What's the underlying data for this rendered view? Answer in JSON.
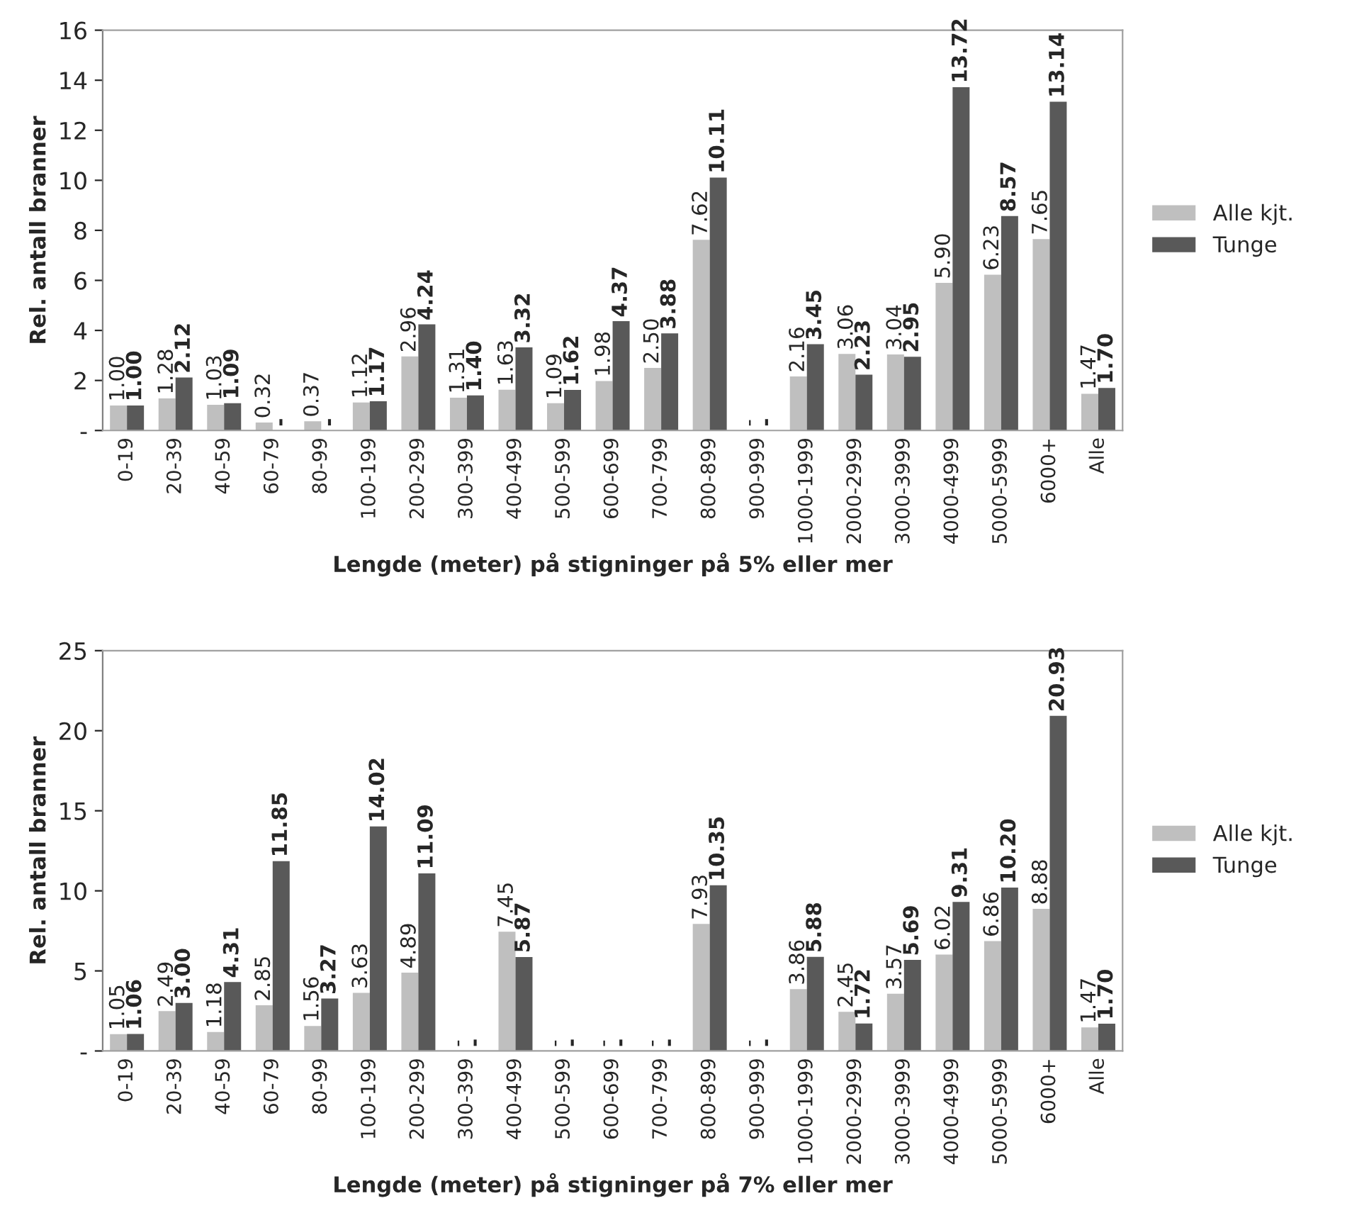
{
  "chart_data": [
    {
      "type": "bar",
      "xlabel": "Lengde (meter) på stigninger på 5% eller mer",
      "ylabel": "Rel. antall branner",
      "categories": [
        "0-19",
        "20-39",
        "40-59",
        "60-79",
        "80-99",
        "100-199",
        "200-299",
        "300-399",
        "400-499",
        "500-599",
        "600-699",
        "700-799",
        "800-899",
        "900-999",
        "1000-1999",
        "2000-2999",
        "3000-3999",
        "4000-4999",
        "5000-5999",
        "6000+",
        "Alle"
      ],
      "series": [
        {
          "name": "Alle kjt.",
          "color": "#bfbfbf",
          "values": [
            1.0,
            1.28,
            1.03,
            0.32,
            0.37,
            1.12,
            2.96,
            1.31,
            1.63,
            1.09,
            1.98,
            2.5,
            7.62,
            0,
            2.16,
            3.06,
            3.04,
            5.9,
            6.23,
            7.65,
            1.47
          ],
          "value_labels": [
            "1.00",
            "1.28",
            "1.03",
            "0.32",
            "0.37",
            "1.12",
            "2.96",
            "1.31",
            "1.63",
            "1.09",
            "1.98",
            "2.50",
            "7.62",
            "-",
            "2.16",
            "3.06",
            "3.04",
            "5.90",
            "6.23",
            "7.65",
            "1.47"
          ]
        },
        {
          "name": "Tunge",
          "color": "#595959",
          "values": [
            1.0,
            2.12,
            1.09,
            0,
            0,
            1.17,
            4.24,
            1.4,
            3.32,
            1.62,
            4.37,
            3.88,
            10.11,
            0,
            3.45,
            2.23,
            2.95,
            13.72,
            8.57,
            13.14,
            1.7
          ],
          "value_labels": [
            "1.00",
            "2.12",
            "1.09",
            "-",
            "-",
            "1.17",
            "4.24",
            "1.40",
            "3.32",
            "1.62",
            "4.37",
            "3.88",
            "10.11",
            "-",
            "3.45",
            "2.23",
            "2.95",
            "13.72",
            "8.57",
            "13.14",
            "1.70"
          ]
        }
      ],
      "ylim": [
        0,
        16
      ],
      "yticks": [
        {
          "value": 0,
          "label": "-"
        },
        2,
        4,
        6,
        8,
        10,
        12,
        14,
        16
      ],
      "legend": "right"
    },
    {
      "type": "bar",
      "xlabel": "Lengde (meter) på stigninger på 7% eller mer",
      "ylabel": "Rel. antall branner",
      "categories": [
        "0-19",
        "20-39",
        "40-59",
        "60-79",
        "80-99",
        "100-199",
        "200-299",
        "300-399",
        "400-499",
        "500-599",
        "600-699",
        "700-799",
        "800-899",
        "900-999",
        "1000-1999",
        "2000-2999",
        "3000-3999",
        "4000-4999",
        "5000-5999",
        "6000+",
        "Alle"
      ],
      "series": [
        {
          "name": "Alle kjt.",
          "color": "#bfbfbf",
          "values": [
            1.05,
            2.49,
            1.18,
            2.85,
            1.56,
            3.63,
            4.89,
            0,
            7.45,
            0,
            0,
            0,
            7.93,
            0,
            3.86,
            2.45,
            3.57,
            6.02,
            6.86,
            8.88,
            1.47
          ],
          "value_labels": [
            "1.05",
            "2.49",
            "1.18",
            "2.85",
            "1.56",
            "3.63",
            "4.89",
            "-",
            "7.45",
            "-",
            "-",
            "-",
            "7.93",
            "-",
            "3.86",
            "2.45",
            "3.57",
            "6.02",
            "6.86",
            "8.88",
            "1.47"
          ]
        },
        {
          "name": "Tunge",
          "color": "#595959",
          "values": [
            1.06,
            3.0,
            4.31,
            11.85,
            3.27,
            14.02,
            11.09,
            0,
            5.87,
            0,
            0,
            0,
            10.35,
            0,
            5.88,
            1.72,
            5.69,
            9.31,
            10.2,
            20.93,
            1.7
          ],
          "value_labels": [
            "1.06",
            "3.00",
            "4.31",
            "11.85",
            "3.27",
            "14.02",
            "11.09",
            "-",
            "5.87",
            "-",
            "-",
            "-",
            "10.35",
            "-",
            "5.88",
            "1.72",
            "5.69",
            "9.31",
            "10.20",
            "20.93",
            "1.70"
          ]
        }
      ],
      "ylim": [
        0,
        25
      ],
      "yticks": [
        {
          "value": 0,
          "label": "-"
        },
        5,
        10,
        15,
        20,
        25
      ],
      "legend": "right"
    }
  ]
}
